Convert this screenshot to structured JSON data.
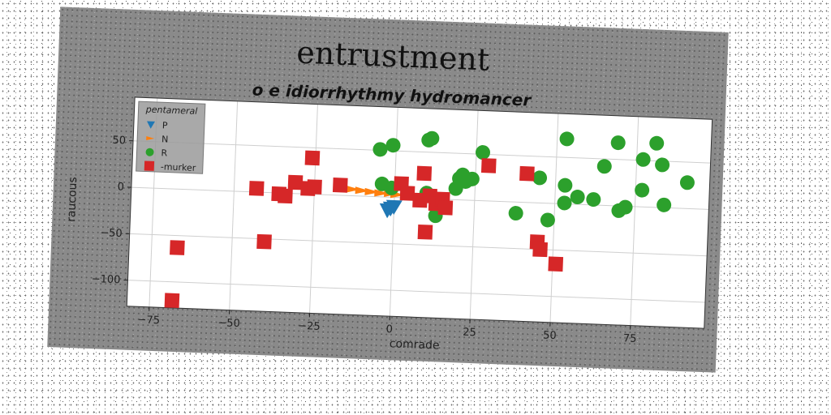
{
  "chart_data": {
    "type": "scatter",
    "title": "entrustment",
    "subtitle": "o e idiorrhythmy hydromancer",
    "xlabel": "comrade",
    "ylabel": "raucous",
    "xlim": [
      -82,
      98
    ],
    "ylim": [
      -128,
      97
    ],
    "xticks": [
      -75,
      -50,
      -25,
      0,
      25,
      50,
      75
    ],
    "yticks": [
      -100,
      -50,
      0,
      50
    ],
    "grid": true,
    "legend": {
      "title": "pentameral",
      "placement": "top-left"
    },
    "series": [
      {
        "name": "P",
        "marker": "triangle-down",
        "color": "#1f77b4",
        "points": [
          [
            -1,
            -12
          ],
          [
            0,
            -10
          ],
          [
            -2,
            -14
          ]
        ]
      },
      {
        "name": "N",
        "marker": "triangle-wide",
        "color": "#ff7f0e",
        "points": [
          [
            -13,
            7
          ],
          [
            -10,
            6
          ],
          [
            -7,
            5
          ],
          [
            -4,
            4
          ],
          [
            -1,
            4
          ],
          [
            1,
            3
          ]
        ]
      },
      {
        "name": "R",
        "marker": "circle",
        "color": "#2ca02c",
        "points": [
          [
            -5,
            51
          ],
          [
            -1,
            56
          ],
          [
            10,
            63
          ],
          [
            11,
            65
          ],
          [
            27,
            52
          ],
          [
            53,
            70
          ],
          [
            69,
            68
          ],
          [
            81,
            69
          ],
          [
            77,
            51
          ],
          [
            83,
            46
          ],
          [
            65,
            42
          ],
          [
            91,
            28
          ],
          [
            -4,
            14
          ],
          [
            -1,
            10
          ],
          [
            10,
            6
          ],
          [
            20,
            23
          ],
          [
            21,
            27
          ],
          [
            22,
            20
          ],
          [
            24,
            23
          ],
          [
            19,
            12
          ],
          [
            45,
            27
          ],
          [
            53,
            20
          ],
          [
            57,
            8
          ],
          [
            53,
            1
          ],
          [
            62,
            6
          ],
          [
            72,
            -1
          ],
          [
            70,
            -5
          ],
          [
            77,
            18
          ],
          [
            84,
            3
          ],
          [
            38,
            -12
          ],
          [
            48,
            -18
          ],
          [
            13,
            -18
          ]
        ]
      },
      {
        "name": "-murker",
        "marker": "square",
        "color": "#d62728",
        "points": [
          [
            -26,
            39
          ],
          [
            -43,
            4
          ],
          [
            -36,
            -1
          ],
          [
            -34,
            -3
          ],
          [
            -31,
            12
          ],
          [
            -27,
            6
          ],
          [
            -17,
            11
          ],
          [
            -25,
            8
          ],
          [
            2,
            15
          ],
          [
            4,
            5
          ],
          [
            8,
            -2
          ],
          [
            11,
            3
          ],
          [
            13,
            -5
          ],
          [
            15,
            0
          ],
          [
            16,
            -9
          ],
          [
            9,
            27
          ],
          [
            10,
            -36
          ],
          [
            29,
            38
          ],
          [
            41,
            31
          ],
          [
            45,
            -42
          ],
          [
            46,
            -50
          ],
          [
            51,
            -65
          ],
          [
            -40,
            -53
          ],
          [
            -67,
            -63
          ],
          [
            -68,
            -120
          ]
        ]
      }
    ]
  }
}
